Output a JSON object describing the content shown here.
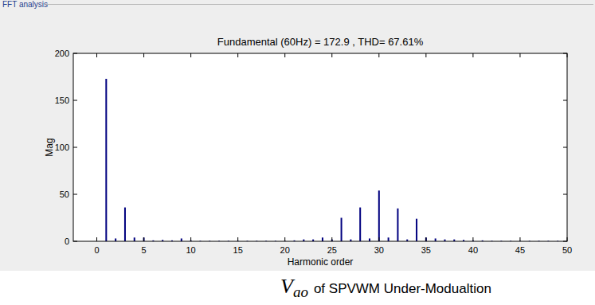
{
  "chart_data": {
    "type": "bar",
    "panel_title": "FFT analysis",
    "title": "Fundamental (60Hz) = 172.9 , THD= 67.61%",
    "x_label": "Harmonic order",
    "y_label": "Mag",
    "caption": {
      "symbol": "V",
      "subscript": "ao",
      "text": "of SPVWM Under-Modualtion"
    },
    "x": [
      0,
      1,
      2,
      3,
      4,
      5,
      6,
      7,
      8,
      9,
      10,
      11,
      12,
      13,
      14,
      15,
      16,
      17,
      18,
      19,
      20,
      21,
      22,
      23,
      24,
      25,
      26,
      27,
      28,
      29,
      30,
      31,
      32,
      33,
      34,
      35,
      36,
      37,
      38,
      39,
      40,
      41,
      42,
      43,
      44,
      45,
      46,
      47,
      48,
      49,
      50
    ],
    "values": [
      0,
      172.9,
      3,
      36,
      4,
      4,
      1,
      1.5,
      1,
      3,
      1,
      0.5,
      0.5,
      0.5,
      0.5,
      0.5,
      0.5,
      0.5,
      0.5,
      0.5,
      0.5,
      1,
      2,
      2,
      4,
      2,
      25,
      2,
      36,
      3,
      54,
      4,
      35,
      2,
      24,
      4,
      3,
      2,
      2,
      1.5,
      1,
      1,
      0.5,
      0.5,
      0.5,
      0.5,
      0.5,
      0.5,
      0.5,
      0.5,
      0.5
    ],
    "color": "#00007f",
    "xlim": [
      -2.5,
      50
    ],
    "xticks": [
      0,
      5,
      10,
      15,
      20,
      25,
      30,
      35,
      40,
      45,
      50
    ],
    "ylim": [
      0,
      200
    ],
    "yticks": [
      0,
      50,
      100,
      150,
      200
    ],
    "grid": false
  }
}
